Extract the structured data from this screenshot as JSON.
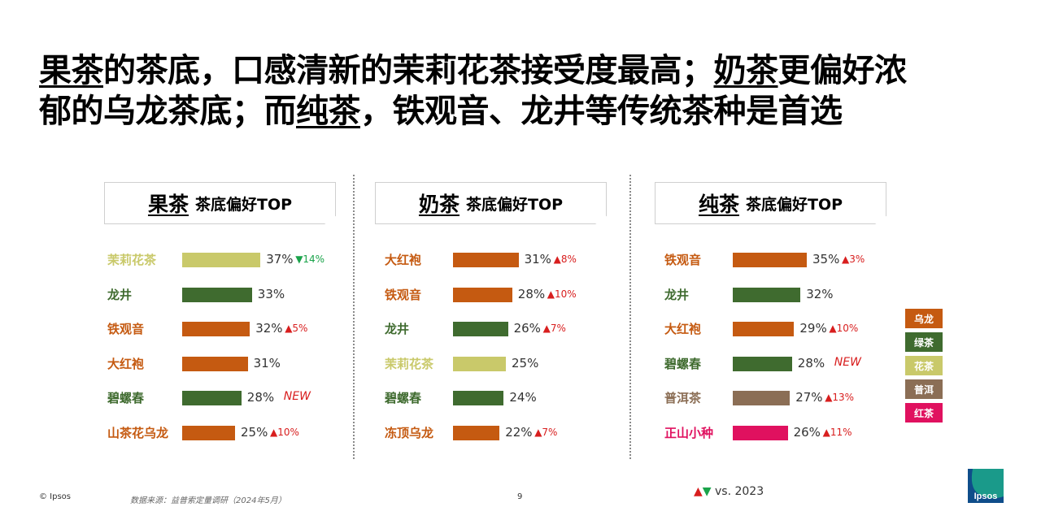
{
  "title": {
    "line1_prefix": "果茶",
    "line1_mid": "的茶底，口感清新的茉莉花茶接受度最高；",
    "line1_u2": "奶茶",
    "line1_suffix": "更偏好浓",
    "line2_prefix": "郁的乌龙茶底；而",
    "line2_u": "纯茶",
    "line2_suffix": "，铁观音、龙井等传统茶种是首选"
  },
  "colors": {
    "oolong": "#c55a11",
    "green": "#3f6b2f",
    "flower": "#c9c96a",
    "puer": "#8b6e55",
    "black": "#e0115f",
    "up": "#d81e1e",
    "down": "#1aa34a"
  },
  "chart_data": [
    {
      "type": "bar",
      "title_main": "果茶",
      "title_sub": "茶底偏好TOP",
      "categories": [
        "茉莉花茶",
        "龙井",
        "铁观音",
        "大红袍",
        "碧螺春",
        "山茶花乌龙"
      ],
      "values": [
        37,
        33,
        32,
        31,
        28,
        25
      ],
      "value_labels": [
        "37%",
        "33%",
        "32%",
        "31%",
        "28%",
        "25%"
      ],
      "groups": [
        "flower",
        "green",
        "oolong",
        "oolong",
        "green",
        "oolong"
      ],
      "changes": [
        {
          "dir": "down",
          "text": "14%"
        },
        null,
        {
          "dir": "up",
          "text": "5%"
        },
        null,
        {
          "dir": "new",
          "text": "NEW"
        },
        {
          "dir": "up",
          "text": "10%"
        }
      ]
    },
    {
      "type": "bar",
      "title_main": "奶茶",
      "title_sub": "茶底偏好TOP",
      "categories": [
        "大红袍",
        "铁观音",
        "龙井",
        "茉莉花茶",
        "碧螺春",
        "冻顶乌龙"
      ],
      "values": [
        31,
        28,
        26,
        25,
        24,
        22
      ],
      "value_labels": [
        "31%",
        "28%",
        "26%",
        "25%",
        "24%",
        "22%"
      ],
      "groups": [
        "oolong",
        "oolong",
        "green",
        "flower",
        "green",
        "oolong"
      ],
      "changes": [
        {
          "dir": "up",
          "text": "8%"
        },
        {
          "dir": "up",
          "text": "10%"
        },
        {
          "dir": "up",
          "text": "7%"
        },
        null,
        null,
        {
          "dir": "up",
          "text": "7%"
        }
      ]
    },
    {
      "type": "bar",
      "title_main": "纯茶",
      "title_sub": "茶底偏好TOP",
      "categories": [
        "铁观音",
        "龙井",
        "大红袍",
        "碧螺春",
        "普洱茶",
        "正山小种"
      ],
      "values": [
        35,
        32,
        29,
        28,
        27,
        26
      ],
      "value_labels": [
        "35%",
        "32%",
        "29%",
        "28%",
        "27%",
        "26%"
      ],
      "groups": [
        "oolong",
        "green",
        "oolong",
        "green",
        "puer",
        "black"
      ],
      "changes": [
        {
          "dir": "up",
          "text": "3%"
        },
        null,
        {
          "dir": "up",
          "text": "10%"
        },
        {
          "dir": "new",
          "text": "NEW"
        },
        {
          "dir": "up",
          "text": "13%"
        },
        {
          "dir": "up",
          "text": "11%"
        }
      ]
    }
  ],
  "legend": [
    {
      "key": "oolong",
      "label": "乌龙"
    },
    {
      "key": "green",
      "label": "绿茶"
    },
    {
      "key": "flower",
      "label": "花茶"
    },
    {
      "key": "puer",
      "label": "普洱"
    },
    {
      "key": "black",
      "label": "红茶"
    }
  ],
  "footer": {
    "copyright": "© Ipsos",
    "source": "数据来源：益普索定量调研（2024年5月）",
    "page": "9",
    "vs_text": "vs. 2023"
  },
  "logo_text": "Ipsos"
}
